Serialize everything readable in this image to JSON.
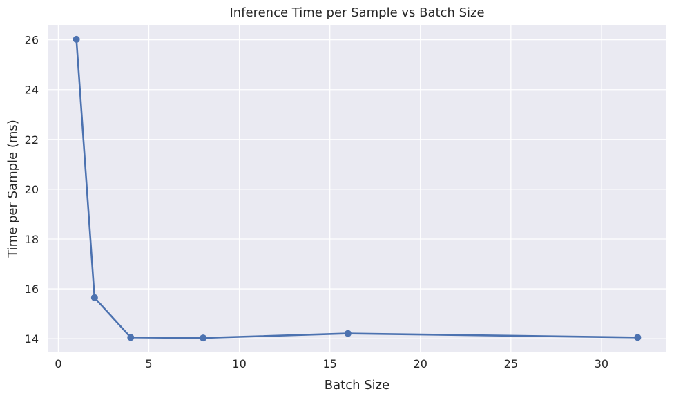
{
  "chart_data": {
    "type": "line",
    "title": "Inference Time per Sample vs Batch Size",
    "xlabel": "Batch Size",
    "ylabel": "Time per Sample (ms)",
    "x": [
      1,
      2,
      4,
      8,
      16,
      32
    ],
    "series": [
      {
        "values": [
          26.02,
          15.65,
          14.05,
          14.03,
          14.21,
          14.05
        ],
        "color": "#4c72b0",
        "marker": "circle"
      }
    ],
    "xlim": [
      -0.55,
      33.55
    ],
    "ylim": [
      13.45,
      26.6
    ],
    "xticks": [
      0,
      5,
      10,
      15,
      20,
      25,
      30
    ],
    "yticks": [
      14,
      16,
      18,
      20,
      22,
      24,
      26
    ],
    "grid": true,
    "background_color": "#eaeaf2",
    "grid_color": "#ffffff"
  }
}
